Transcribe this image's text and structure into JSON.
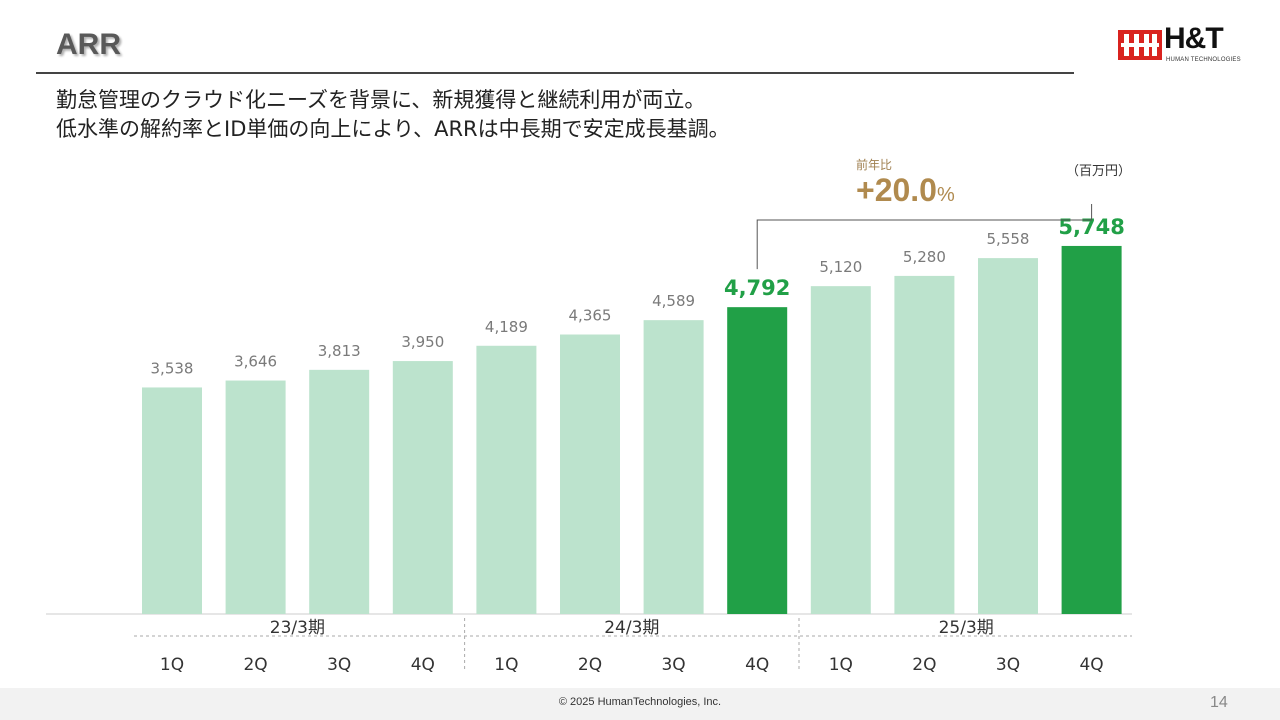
{
  "header": {
    "title": "ARR",
    "logo_text": "H&T",
    "logo_subtext": "HUMAN TECHNOLOGIES"
  },
  "headline": {
    "line1": "勤怠管理のクラウド化ニーズを背景に、新規獲得と継続利用が両立。",
    "line2": "低水準の解約率とID単価の向上により、ARRは中長期で安定成長基調。"
  },
  "unit_label": "（百万円）",
  "yoy": {
    "label": "前年比",
    "value": "+20.0",
    "suffix": "%"
  },
  "colors": {
    "light_bar": "#bce3cd",
    "highlight_bar": "#21a047",
    "highlight_text": "#21a047",
    "label_text": "#7a7a7a",
    "accent_gold": "#b08a4e"
  },
  "chart_data": {
    "type": "bar",
    "categories": [
      "1Q",
      "2Q",
      "3Q",
      "4Q",
      "1Q",
      "2Q",
      "3Q",
      "4Q",
      "1Q",
      "2Q",
      "3Q",
      "4Q"
    ],
    "period_groups": [
      {
        "label": "23/3期",
        "start": 0,
        "end": 3
      },
      {
        "label": "24/3期",
        "start": 4,
        "end": 7
      },
      {
        "label": "25/3期",
        "start": 8,
        "end": 11
      }
    ],
    "values": [
      3538,
      3646,
      3813,
      3950,
      4189,
      4365,
      4589,
      4792,
      5120,
      5280,
      5558,
      5748
    ],
    "value_labels": [
      "3,538",
      "3,646",
      "3,813",
      "3,950",
      "4,189",
      "4,365",
      "4,589",
      "4,792",
      "5,120",
      "5,280",
      "5,558",
      "5,748"
    ],
    "highlight_indices": [
      7,
      11
    ],
    "comparison": {
      "from_index": 7,
      "to_index": 11
    },
    "ylim": [
      0,
      6200
    ],
    "grid": false,
    "legend": "none"
  },
  "footer": {
    "copyright": "© 2025   HumanTechnologies, Inc.",
    "page_number": "14"
  }
}
